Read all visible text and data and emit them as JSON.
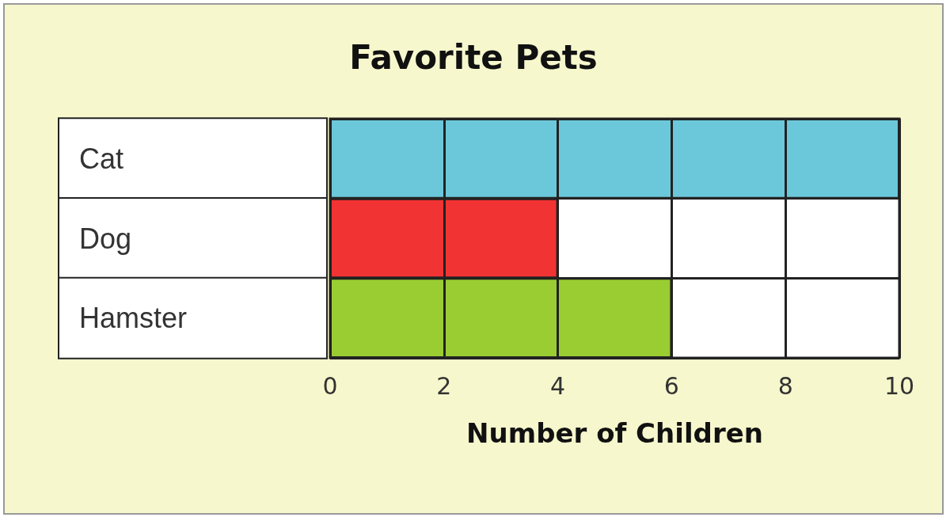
{
  "chart_data": {
    "type": "bar",
    "title": "Favorite Pets",
    "xlabel": "Number of Children",
    "orientation": "horizontal",
    "categories": [
      "Cat",
      "Dog",
      "Hamster"
    ],
    "colors": [
      "#6bc8da",
      "#f23333",
      "#9acd32"
    ],
    "values": [
      10,
      4,
      6
    ],
    "xlim": [
      0,
      10
    ],
    "xticks": [
      0,
      2,
      4,
      6,
      8,
      10
    ],
    "grid": true
  }
}
